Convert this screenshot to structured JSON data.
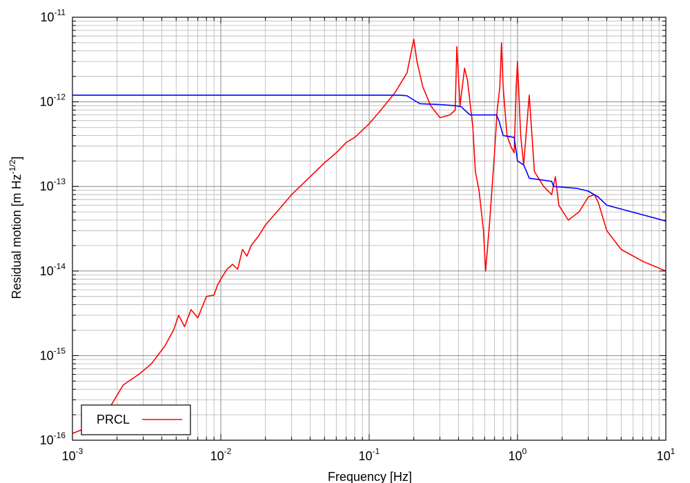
{
  "chart_data": {
    "type": "line",
    "title": "",
    "xlabel": "Frequency [Hz]",
    "ylabel_main": "Residual motion [m Hz",
    "ylabel_sup": "-1/2",
    "ylabel_end": "]",
    "xscale": "log",
    "yscale": "log",
    "xlim": [
      0.001,
      10
    ],
    "ylim": [
      1e-16,
      1e-11
    ],
    "grid": true,
    "legend": {
      "placement": "bottom-left"
    },
    "x_ticks": [
      {
        "base": "10",
        "exp": "-3"
      },
      {
        "base": "10",
        "exp": "-2"
      },
      {
        "base": "10",
        "exp": "-1"
      },
      {
        "base": "10",
        "exp": "0"
      },
      {
        "base": "10",
        "exp": "1"
      }
    ],
    "y_ticks": [
      {
        "base": "10",
        "exp": "-16"
      },
      {
        "base": "10",
        "exp": "-15"
      },
      {
        "base": "10",
        "exp": "-14"
      },
      {
        "base": "10",
        "exp": "-13"
      },
      {
        "base": "10",
        "exp": "-12"
      },
      {
        "base": "10",
        "exp": "-11"
      }
    ],
    "series": [
      {
        "name": "PRCL",
        "color": "#ff0000",
        "x": [
          0.001,
          0.0015,
          0.0018,
          0.0022,
          0.0028,
          0.0034,
          0.0042,
          0.0048,
          0.0052,
          0.0057,
          0.0063,
          0.007,
          0.008,
          0.009,
          0.0095,
          0.01,
          0.011,
          0.012,
          0.013,
          0.014,
          0.015,
          0.016,
          0.018,
          0.02,
          0.025,
          0.03,
          0.04,
          0.05,
          0.06,
          0.07,
          0.08,
          0.1,
          0.12,
          0.15,
          0.18,
          0.2,
          0.21,
          0.23,
          0.26,
          0.3,
          0.35,
          0.38,
          0.39,
          0.41,
          0.44,
          0.46,
          0.5,
          0.52,
          0.55,
          0.59,
          0.61,
          0.65,
          0.7,
          0.73,
          0.76,
          0.78,
          0.8,
          0.85,
          0.9,
          0.95,
          0.98,
          1.0,
          1.05,
          1.1,
          1.2,
          1.3,
          1.5,
          1.7,
          1.8,
          1.9,
          2.2,
          2.6,
          3.0,
          3.3,
          3.5,
          4.0,
          5.0,
          7.0,
          10.0
        ],
        "y": [
          1.2e-16,
          1.6e-16,
          2.5e-16,
          4.5e-16,
          6e-16,
          8e-16,
          1.3e-15,
          2e-15,
          3e-15,
          2.2e-15,
          3.5e-15,
          2.8e-15,
          5e-15,
          5.2e-15,
          6.8e-15,
          8e-15,
          1.05e-14,
          1.2e-14,
          1.05e-14,
          1.8e-14,
          1.5e-14,
          2e-14,
          2.6e-14,
          3.5e-14,
          5.5e-14,
          8e-14,
          1.3e-13,
          1.9e-13,
          2.5e-13,
          3.3e-13,
          3.8e-13,
          5.5e-13,
          8e-13,
          1.3e-12,
          2.2e-12,
          5.5e-12,
          3e-12,
          1.5e-12,
          9e-13,
          6.5e-13,
          7e-13,
          8e-13,
          4.5e-12,
          9e-13,
          2.5e-12,
          1.8e-12,
          5e-13,
          1.5e-13,
          9e-14,
          3e-14,
          1e-14,
          4e-14,
          2.5e-13,
          8e-13,
          1.5e-12,
          5e-12,
          1.5e-12,
          4e-13,
          3e-13,
          2.5e-13,
          1.5e-12,
          3e-12,
          4e-13,
          1.8e-13,
          1.2e-12,
          1.5e-13,
          1e-13,
          8e-14,
          1.3e-13,
          6e-14,
          4e-14,
          5e-14,
          7.5e-14,
          8e-14,
          6.5e-14,
          3e-14,
          1.8e-14,
          1.3e-14,
          1e-14
        ]
      },
      {
        "name": "",
        "color": "#0000ff",
        "x": [
          0.001,
          0.16,
          0.18,
          0.2,
          0.22,
          0.3,
          0.38,
          0.4,
          0.42,
          0.44,
          0.48,
          0.72,
          0.75,
          0.8,
          0.95,
          1.0,
          1.1,
          1.15,
          1.2,
          1.7,
          1.75,
          2.5,
          3.0,
          3.5,
          4.0,
          10.0
        ],
        "y": [
          1.2e-12,
          1.2e-12,
          1.18e-12,
          1.05e-12,
          9.5e-13,
          9.3e-13,
          9e-13,
          8.9e-13,
          8.7e-13,
          8e-13,
          7e-13,
          7e-13,
          6e-13,
          4e-13,
          3.8e-13,
          2e-13,
          1.8e-13,
          1.5e-13,
          1.25e-13,
          1.15e-13,
          1e-13,
          9.5e-14,
          8.8e-14,
          7.5e-14,
          6e-14,
          3.9e-14
        ]
      }
    ]
  }
}
